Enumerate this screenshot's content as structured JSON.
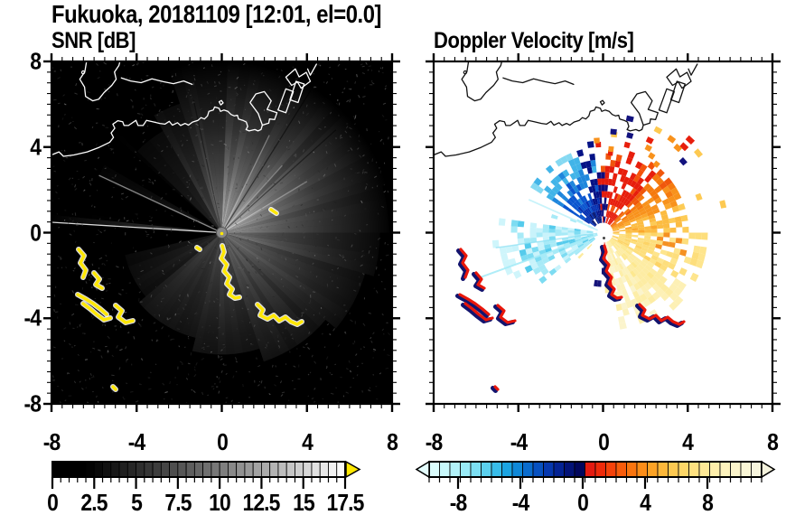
{
  "title": "Fukuoka, 20181109 [12:01, el=0.0]",
  "panels": {
    "snr": {
      "subtitle": "SNR [dB]",
      "x_tick_labels": [
        "-8",
        "-4",
        "0",
        "4",
        "8"
      ],
      "y_tick_labels": [
        "8",
        "4",
        "0",
        "-4",
        "-8"
      ]
    },
    "velocity": {
      "subtitle": "Doppler Velocity [m/s]",
      "x_tick_labels": [
        "-8",
        "-4",
        "0",
        "4",
        "8"
      ]
    }
  },
  "colorbars": {
    "snr": {
      "min": 0,
      "max": 17.5,
      "tick_values": [
        0,
        2.5,
        5,
        7.5,
        10,
        12.5,
        15,
        17.5
      ],
      "tick_labels": [
        "0",
        "2.5",
        "5",
        "7.5",
        "10",
        "12.5",
        "15",
        "17.5"
      ],
      "minor_step": 0.5,
      "segments": 35,
      "scheme": "grayscale black to white",
      "overflow_arrow_color": "#ffe800"
    },
    "velocity": {
      "tick_values": [
        -8,
        -4,
        0,
        4,
        8
      ],
      "tick_labels": [
        "-8",
        "-4",
        "0",
        "4",
        "8"
      ],
      "left_arrow_color": "#e4fdfd",
      "right_arrow_color": "#f5f3dd",
      "colors": [
        "#dbfdfd",
        "#c8f8fb",
        "#b2f2f9",
        "#99ebf7",
        "#7cdff3",
        "#5bd0ee",
        "#38bce9",
        "#1ba4e2",
        "#0f88d8",
        "#0a6ccd",
        "#0751c0",
        "#0537ae",
        "#032293",
        "#021277",
        "#01065c",
        "#e31a10",
        "#ee2a0a",
        "#f5420a",
        "#f85c0b",
        "#fa750f",
        "#fb8d18",
        "#fca326",
        "#fdb83a",
        "#fdc951",
        "#fdd768",
        "#fee180",
        "#fee996",
        "#feefab",
        "#fdf3bd",
        "#fcf5cb",
        "#faf6d6",
        "#f7f5dd"
      ]
    }
  },
  "chart_data": [
    {
      "type": "heatmap",
      "panel": "left",
      "title": "SNR [dB]",
      "units": "dB",
      "x_range": [
        -8,
        8
      ],
      "y_range": [
        -8,
        8
      ],
      "x_ticks": [
        -8,
        -4,
        0,
        4,
        8
      ],
      "y_ticks": [
        8,
        4,
        0,
        -4,
        -8
      ],
      "minor_tick_step": 0.5,
      "value_range_shown": [
        0,
        17.5
      ],
      "radar_center": [
        0,
        0
      ],
      "features": [
        "black noisy background speckle over whole panel",
        "bright grayscale echo fan radiating from radar center, strongest toward N-NE-E",
        "dark blocked-beam wedge sectors toward W and WSW with one thin bright ray crossing them",
        "white coastline of Hakata Bay with peninsula at top-left and angular port piers at top-right",
        "yellow saturated clutter strips SW of center and a yellow clutter chain trailing SSE from center",
        "small gray disk with yellow dot at radar site"
      ]
    },
    {
      "type": "heatmap",
      "panel": "right",
      "title": "Doppler Velocity [m/s]",
      "units": "m/s",
      "x_range": [
        -8,
        8
      ],
      "y_range": [
        -8,
        8
      ],
      "x_ticks": [
        -8,
        -4,
        0,
        4,
        8
      ],
      "y_ticks": [
        8,
        4,
        0,
        -4,
        -8
      ],
      "minor_tick_step": 0.5,
      "value_range_shown": [
        -8,
        8
      ],
      "radar_center": [
        0,
        0
      ],
      "features": [
        "white background with black coastline",
        "blue negative-velocity lobe NW of radar center with light cyan outer edge",
        "dark navy band just N of center adjoining a bright red positive lobe NNE",
        "orange to yellow to cream positive-velocity fan E and SE of center",
        "pale cyan negative lobe and thin cyan rays toward SW",
        "red clutter speckles with navy shadows matching the yellow SNR clutter patches"
      ]
    }
  ],
  "map_outline": {
    "coast": [
      [
        0,
        0.273
      ],
      [
        0.022,
        0.264
      ],
      [
        0.035,
        0.277
      ],
      [
        0.066,
        0.273
      ],
      [
        0.105,
        0.264
      ],
      [
        0.14,
        0.251
      ],
      [
        0.171,
        0.236
      ],
      [
        0.182,
        0.222
      ],
      [
        0.175,
        0.209
      ],
      [
        0.186,
        0.195
      ],
      [
        0.18,
        0.183
      ],
      [
        0.195,
        0.173
      ],
      [
        0.209,
        0.176
      ],
      [
        0.213,
        0.187
      ],
      [
        0.226,
        0.187
      ],
      [
        0.248,
        0.172
      ],
      [
        0.254,
        0.187
      ],
      [
        0.269,
        0.187
      ],
      [
        0.279,
        0.172
      ],
      [
        0.297,
        0.176
      ],
      [
        0.318,
        0.181
      ],
      [
        0.333,
        0.183
      ],
      [
        0.346,
        0.175
      ],
      [
        0.355,
        0.186
      ],
      [
        0.37,
        0.179
      ],
      [
        0.379,
        0.187
      ],
      [
        0.392,
        0.181
      ],
      [
        0.402,
        0.186
      ],
      [
        0.414,
        0.177
      ],
      [
        0.43,
        0.172
      ],
      [
        0.439,
        0.164
      ],
      [
        0.449,
        0.168
      ],
      [
        0.458,
        0.159
      ],
      [
        0.462,
        0.146
      ],
      [
        0.475,
        0.142
      ],
      [
        0.479,
        0.133
      ],
      [
        0.492,
        0.137
      ],
      [
        0.496,
        0.146
      ],
      [
        0.506,
        0.142
      ],
      [
        0.518,
        0.146
      ],
      [
        0.527,
        0.155
      ],
      [
        0.537,
        0.159
      ],
      [
        0.546,
        0.157
      ],
      [
        0.549,
        0.168
      ],
      [
        0.562,
        0.172
      ],
      [
        0.572,
        0.177
      ],
      [
        0.576,
        0.19
      ],
      [
        0.571,
        0.199
      ],
      [
        0.58,
        0.203
      ],
      [
        0.597,
        0.199
      ],
      [
        0.606,
        0.203
      ],
      [
        0.615,
        0.199
      ],
      [
        0.619,
        0.186
      ]
    ],
    "diamond": [
      [
        0.619,
        0.186
      ],
      [
        0.607,
        0.152
      ],
      [
        0.583,
        0.12
      ],
      [
        0.6,
        0.095
      ],
      [
        0.625,
        0.088
      ],
      [
        0.645,
        0.115
      ],
      [
        0.633,
        0.14
      ],
      [
        0.662,
        0.15
      ],
      [
        0.655,
        0.17
      ],
      [
        0.64,
        0.168
      ],
      [
        0.638,
        0.18
      ]
    ],
    "pier1": [
      [
        0.665,
        0.142
      ],
      [
        0.688,
        0.08
      ],
      [
        0.71,
        0.088
      ],
      [
        0.688,
        0.15
      ]
    ],
    "pier2": [
      [
        0.7,
        0.112
      ],
      [
        0.718,
        0.058
      ],
      [
        0.742,
        0.066
      ],
      [
        0.724,
        0.12
      ]
    ],
    "l_shape": [
      [
        0.688,
        0.046
      ],
      [
        0.716,
        0.022
      ],
      [
        0.727,
        0.045
      ],
      [
        0.748,
        0.032
      ],
      [
        0.76,
        0.058
      ],
      [
        0.733,
        0.078
      ],
      [
        0.722,
        0.06
      ],
      [
        0.705,
        0.07
      ]
    ],
    "v_mark": [
      [
        0.752,
        0.022
      ],
      [
        0.76,
        0.04
      ],
      [
        0.778,
        0.008
      ]
    ],
    "peninsula": [
      [
        0.103,
        0
      ],
      [
        0.098,
        0.03
      ],
      [
        0.083,
        0.052
      ],
      [
        0.097,
        0.075
      ],
      [
        0.1,
        0.102
      ],
      [
        0.121,
        0.115
      ],
      [
        0.139,
        0.11
      ],
      [
        0.154,
        0.091
      ],
      [
        0.177,
        0.07
      ],
      [
        0.19,
        0.052
      ],
      [
        0.185,
        0.031
      ],
      [
        0.198,
        0.012
      ],
      [
        0.201,
        0
      ]
    ],
    "spit": [
      [
        0.205,
        0.048
      ],
      [
        0.232,
        0.057
      ],
      [
        0.263,
        0.062
      ],
      [
        0.295,
        0.051
      ],
      [
        0.328,
        0.059
      ],
      [
        0.358,
        0.065
      ],
      [
        0.388,
        0.057
      ],
      [
        0.413,
        0.067
      ]
    ],
    "small_island": [
      [
        0.492,
        0.118
      ],
      [
        0.499,
        0.114
      ],
      [
        0.504,
        0.121
      ],
      [
        0.497,
        0.127
      ]
    ],
    "islet_dot": [
      0.093,
      0.032
    ]
  },
  "clutter_patches": {
    "strips": [
      [
        [
          30,
          208
        ],
        [
          36,
          215
        ],
        [
          32,
          223
        ],
        [
          38,
          231
        ],
        [
          35,
          239
        ]
      ],
      [
        [
          47,
          234
        ],
        [
          53,
          241
        ],
        [
          49,
          247
        ],
        [
          56,
          251
        ]
      ],
      [
        [
          29,
          258
        ],
        [
          38,
          263
        ],
        [
          46,
          268
        ],
        [
          54,
          274
        ],
        [
          61,
          280
        ]
      ],
      [
        [
          35,
          268
        ],
        [
          43,
          274
        ],
        [
          50,
          280
        ],
        [
          58,
          286
        ],
        [
          65,
          284
        ]
      ],
      [
        [
          71,
          270
        ],
        [
          78,
          276
        ],
        [
          74,
          283
        ],
        [
          82,
          289
        ],
        [
          90,
          287
        ]
      ],
      [
        [
          68,
          360
        ],
        [
          71,
          363
        ]
      ],
      [
        [
          189,
          204
        ],
        [
          191,
          211
        ],
        [
          188,
          218
        ],
        [
          194,
          225
        ],
        [
          191,
          232
        ],
        [
          197,
          239
        ],
        [
          194,
          246
        ],
        [
          200,
          252
        ],
        [
          197,
          258
        ],
        [
          203,
          262
        ],
        [
          208,
          261
        ]
      ],
      [
        [
          228,
          269
        ],
        [
          234,
          275
        ],
        [
          231,
          281
        ],
        [
          239,
          285
        ],
        [
          246,
          281
        ],
        [
          252,
          287
        ],
        [
          259,
          283
        ],
        [
          265,
          288
        ],
        [
          272,
          291
        ],
        [
          277,
          288
        ]
      ],
      [
        [
          243,
          164
        ],
        [
          249,
          168
        ]
      ],
      [
        [
          161,
          206
        ],
        [
          164,
          208
        ]
      ]
    ],
    "colors_snr": {
      "stroke": "#ffe800",
      "halo": "#ffffff"
    },
    "colors_velocity": {
      "stroke": "#e8170b",
      "shadow": "#13146e"
    }
  }
}
